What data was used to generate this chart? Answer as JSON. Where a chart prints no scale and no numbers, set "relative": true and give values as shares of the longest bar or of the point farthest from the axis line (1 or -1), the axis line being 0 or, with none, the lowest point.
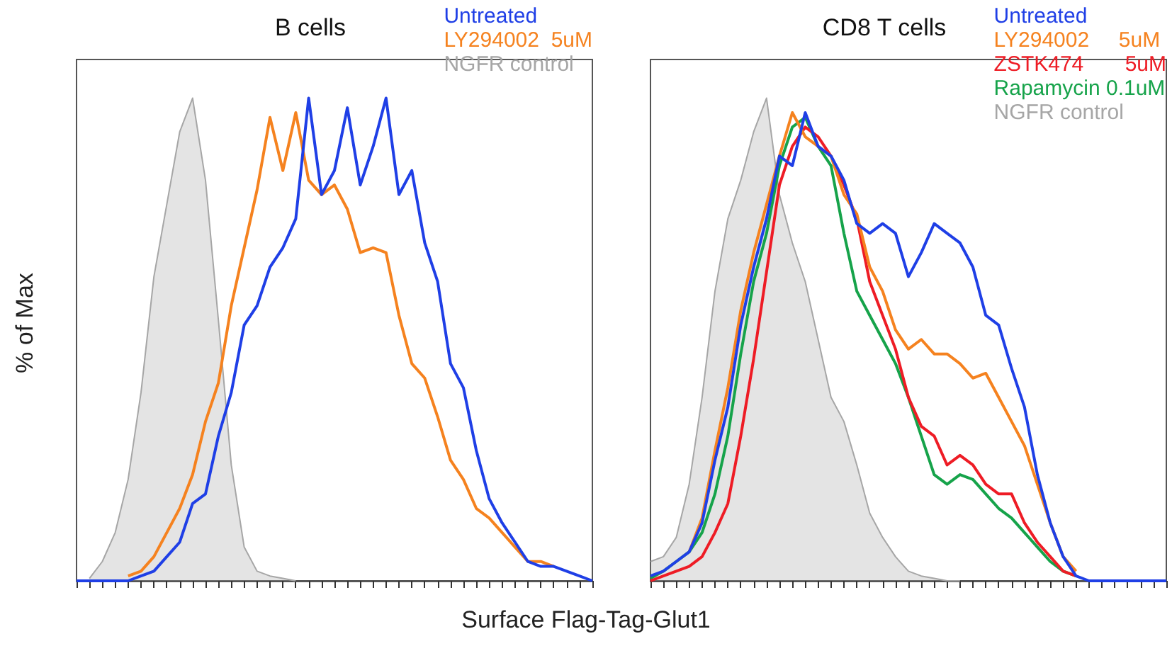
{
  "chart_data": [
    {
      "type": "line",
      "title": "B cells",
      "xlabel": "Surface Flag-Tag-Glut1",
      "ylabel": "% of Max",
      "relative": true,
      "tick_labels": false,
      "legend": "top right",
      "grid": false,
      "categories": [
        null,
        null,
        null,
        null,
        null,
        null,
        null,
        null,
        null,
        null,
        null,
        null,
        null,
        null,
        null,
        null,
        null,
        null,
        null,
        null,
        null,
        null,
        null,
        null,
        null,
        null,
        null,
        null,
        null,
        null,
        null,
        null,
        null,
        null,
        null,
        null,
        null,
        null,
        null,
        null,
        null
      ],
      "series": [
        {
          "name": "Untreated",
          "color": "#1f3fe6",
          "values": [
            0,
            0,
            0,
            0,
            0,
            0.01,
            0.02,
            0.05,
            0.08,
            0.16,
            0.18,
            0.3,
            0.39,
            0.53,
            0.57,
            0.65,
            0.69,
            0.75,
            1.0,
            0.8,
            0.85,
            0.98,
            0.82,
            0.9,
            1.0,
            0.8,
            0.85,
            0.7,
            0.62,
            0.45,
            0.4,
            0.27,
            0.17,
            0.12,
            0.08,
            0.04,
            0.03,
            0.03,
            0.02,
            0.01,
            0
          ]
        },
        {
          "name": "LY294002  5uM",
          "color": "#f5821f",
          "values": [
            null,
            null,
            null,
            null,
            0.01,
            0.02,
            0.05,
            0.1,
            0.15,
            0.22,
            0.33,
            0.41,
            0.57,
            0.69,
            0.81,
            0.96,
            0.85,
            0.97,
            0.83,
            0.8,
            0.82,
            0.77,
            0.68,
            0.69,
            0.68,
            0.55,
            0.45,
            0.42,
            0.34,
            0.25,
            0.21,
            0.15,
            0.13,
            0.1,
            0.07,
            0.04,
            0.04,
            0.03,
            null,
            null,
            null
          ]
        },
        {
          "name": "NGFR control",
          "type": "area",
          "color": "#a6a6a6",
          "values": [
            null,
            0.005,
            0.04,
            0.1,
            0.21,
            0.39,
            0.63,
            0.78,
            0.93,
            1.0,
            0.83,
            0.54,
            0.24,
            0.07,
            0.02,
            0.01,
            0.005,
            0,
            null,
            null,
            null,
            null,
            null,
            null,
            null,
            null,
            null,
            null,
            null,
            null,
            null,
            null,
            null,
            null,
            null,
            null,
            null,
            null,
            null,
            null,
            null
          ]
        }
      ]
    },
    {
      "type": "line",
      "title": "CD8 T cells",
      "relative": true,
      "tick_labels": false,
      "legend": "top right",
      "grid": false,
      "categories": [
        null,
        null,
        null,
        null,
        null,
        null,
        null,
        null,
        null,
        null,
        null,
        null,
        null,
        null,
        null,
        null,
        null,
        null,
        null,
        null,
        null,
        null,
        null,
        null,
        null,
        null,
        null,
        null,
        null,
        null,
        null,
        null,
        null,
        null,
        null,
        null,
        null,
        null,
        null,
        null,
        null
      ],
      "series": [
        {
          "name": "Untreated",
          "color": "#1f3fe6",
          "values": [
            0.01,
            0.02,
            0.04,
            0.06,
            0.12,
            0.25,
            0.36,
            0.53,
            0.65,
            0.75,
            0.88,
            0.86,
            0.97,
            0.9,
            0.88,
            0.83,
            0.74,
            0.72,
            0.74,
            0.72,
            0.63,
            0.68,
            0.74,
            0.72,
            0.7,
            0.65,
            0.55,
            0.53,
            0.44,
            0.36,
            0.22,
            0.12,
            0.05,
            0.01,
            0,
            0,
            0,
            0,
            0,
            0,
            0
          ]
        },
        {
          "name": "LY294002     5uM",
          "color": "#f5821f",
          "values": [
            null,
            null,
            null,
            0.06,
            0.13,
            0.27,
            0.4,
            0.56,
            0.68,
            0.78,
            0.88,
            0.97,
            0.92,
            0.9,
            0.88,
            0.8,
            0.76,
            0.65,
            0.6,
            0.52,
            0.48,
            0.5,
            0.47,
            0.47,
            0.45,
            0.42,
            0.43,
            0.38,
            0.33,
            0.28,
            0.2,
            0.12,
            0.05,
            0.02,
            null,
            null,
            null,
            null,
            null,
            null,
            null
          ]
        },
        {
          "name": "ZSTK474       5uM",
          "color": "#ee1c25",
          "values": [
            0,
            0.01,
            0.02,
            0.03,
            0.05,
            0.1,
            0.16,
            0.3,
            0.46,
            0.64,
            0.82,
            0.9,
            0.94,
            0.92,
            0.88,
            0.82,
            0.75,
            0.62,
            0.55,
            0.48,
            0.38,
            0.32,
            0.3,
            0.24,
            0.26,
            0.24,
            0.2,
            0.18,
            0.18,
            0.12,
            0.08,
            0.05,
            0.02,
            0.01,
            null,
            null,
            null,
            null,
            null,
            null,
            null
          ]
        },
        {
          "name": "Rapamycin 0.1uM",
          "color": "#16a34a",
          "values": [
            0.005,
            0.02,
            0.04,
            0.06,
            0.1,
            0.18,
            0.3,
            0.47,
            0.62,
            0.72,
            0.86,
            0.94,
            0.96,
            0.9,
            0.86,
            0.72,
            0.6,
            0.55,
            0.5,
            0.45,
            0.38,
            0.3,
            0.22,
            0.2,
            0.22,
            0.21,
            0.18,
            0.15,
            0.13,
            0.1,
            0.07,
            0.04,
            0.02,
            0.01,
            null,
            null,
            null,
            null,
            null,
            null,
            null
          ]
        },
        {
          "name": "NGFR control",
          "type": "area",
          "color": "#a6a6a6",
          "values": [
            0.04,
            0.05,
            0.09,
            0.2,
            0.38,
            0.6,
            0.75,
            0.83,
            0.93,
            1.0,
            0.8,
            0.7,
            0.62,
            0.5,
            0.38,
            0.33,
            0.24,
            0.14,
            0.09,
            0.05,
            0.02,
            0.01,
            0.005,
            0,
            0,
            null,
            null,
            null,
            null,
            null,
            null,
            null,
            null,
            null,
            null,
            null,
            null,
            null,
            null,
            null,
            null
          ]
        }
      ]
    }
  ]
}
